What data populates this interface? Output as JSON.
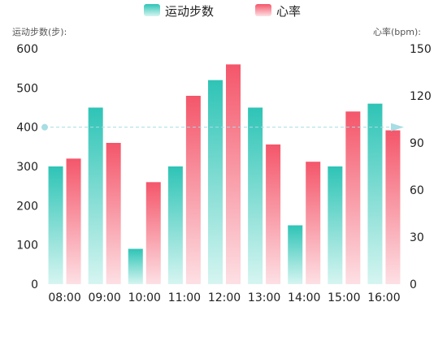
{
  "chart_data": {
    "type": "bar",
    "categories": [
      "08:00",
      "09:00",
      "10:00",
      "11:00",
      "12:00",
      "13:00",
      "14:00",
      "15:00",
      "16:00"
    ],
    "series": [
      {
        "name": "运动步数",
        "axis": "left",
        "values": [
          300,
          450,
          90,
          300,
          520,
          450,
          150,
          300,
          460
        ]
      },
      {
        "name": "心率",
        "axis": "right",
        "values": [
          80,
          90,
          65,
          120,
          140,
          89,
          78,
          110,
          98
        ]
      }
    ],
    "left_axis": {
      "label": "运动步数(步):",
      "ylim": [
        0,
        600
      ],
      "ticks": [
        0,
        100,
        200,
        300,
        400,
        500,
        600
      ]
    },
    "right_axis": {
      "label": "心率(bpm):",
      "ylim": [
        0,
        150
      ],
      "ticks": [
        0,
        30,
        60,
        90,
        120,
        150
      ]
    },
    "reference_line": {
      "axis": "left",
      "value": 400,
      "style": "dashed"
    },
    "legend": {
      "placement": "top-center"
    },
    "colors": {
      "steps_top": "#2ec4b6",
      "steps_bottom": "#d6f5f1",
      "heart_top": "#f4566a",
      "heart_bottom": "#fde0e4",
      "reference": "#a7dde4",
      "axis_text": "#222222",
      "axis_label": "#555555"
    }
  }
}
